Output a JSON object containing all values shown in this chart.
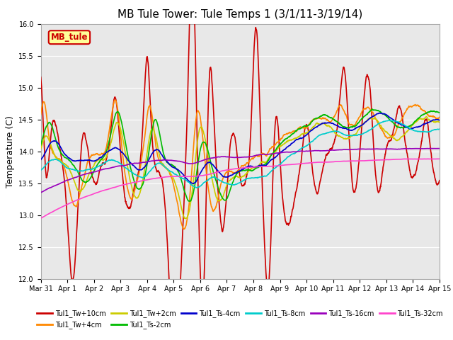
{
  "title": "MB Tule Tower: Tule Temps 1 (3/1/11-3/19/14)",
  "ylabel": "Temperature (C)",
  "ylim": [
    12.0,
    16.0
  ],
  "yticks": [
    12.0,
    12.5,
    13.0,
    13.5,
    14.0,
    14.5,
    15.0,
    15.5,
    16.0
  ],
  "legend_label": "MB_tule",
  "xlim": [
    0,
    15
  ],
  "xtick_pos": [
    0,
    1,
    2,
    3,
    4,
    5,
    6,
    7,
    8,
    9,
    10,
    11,
    12,
    13,
    14,
    15
  ],
  "xtick_labels": [
    "Mar 31",
    "Apr 1",
    "Apr 2",
    "Apr 3",
    "Apr 4",
    "Apr 5",
    "Apr 6",
    "Apr 7",
    "Apr 8",
    "Apr 9",
    "Apr 10",
    "Apr 11",
    "Apr 12",
    "Apr 13",
    "Apr 14",
    "Apr 15"
  ],
  "series": [
    {
      "label": "Tul1_Tw+10cm",
      "color": "#cc0000",
      "lw": 1.2
    },
    {
      "label": "Tul1_Tw+4cm",
      "color": "#ff8800",
      "lw": 1.2
    },
    {
      "label": "Tul1_Tw+2cm",
      "color": "#cccc00",
      "lw": 1.2
    },
    {
      "label": "Tul1_Ts-2cm",
      "color": "#00bb00",
      "lw": 1.2
    },
    {
      "label": "Tul1_Ts-4cm",
      "color": "#0000cc",
      "lw": 1.2
    },
    {
      "label": "Tul1_Ts-8cm",
      "color": "#00cccc",
      "lw": 1.2
    },
    {
      "label": "Tul1_Ts-16cm",
      "color": "#9900bb",
      "lw": 1.2
    },
    {
      "label": "Tul1_Ts-32cm",
      "color": "#ff44cc",
      "lw": 1.2
    }
  ],
  "plot_bg": "#e8e8e8",
  "grid_color": "#ffffff",
  "title_fontsize": 11,
  "tick_fontsize": 7,
  "ylabel_fontsize": 9
}
